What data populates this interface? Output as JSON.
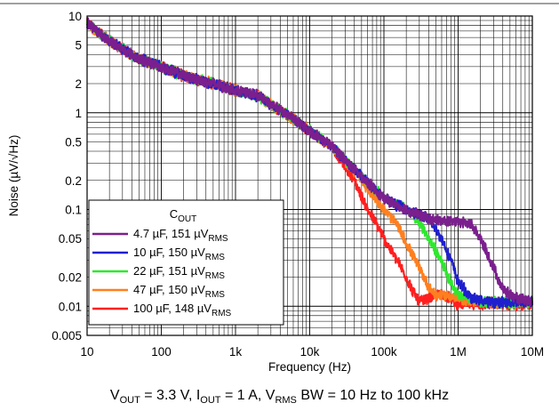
{
  "chart_data": {
    "type": "line",
    "xlabel": "Frequency (Hz)",
    "ylabel": "Noise (µV/√Hz)",
    "xscale": "log",
    "yscale": "log",
    "xlim": [
      10,
      10000000
    ],
    "ylim": [
      0.005,
      10
    ],
    "grid": true,
    "x_tick_labels": [
      "10",
      "100",
      "1k",
      "10k",
      "100k",
      "1M",
      "10M"
    ],
    "x_tick_values": [
      10,
      100,
      1000,
      10000,
      100000,
      1000000,
      10000000
    ],
    "y_tick_labels": [
      "10",
      "5",
      "2",
      "1",
      "0.5",
      "0.2",
      "0.1",
      "0.05",
      "0.02",
      "0.01",
      "0.005"
    ],
    "y_tick_values": [
      10,
      5,
      2,
      1,
      0.5,
      0.2,
      0.1,
      0.05,
      0.02,
      0.01,
      0.005
    ],
    "legend": {
      "title_main": "C",
      "title_sub": "OUT",
      "placement": "bottom-left"
    },
    "caption_parts": [
      {
        "t": "V",
        "sub": false
      },
      {
        "t": "OUT",
        "sub": true
      },
      {
        "t": " = 3.3 V, I",
        "sub": false
      },
      {
        "t": "OUT",
        "sub": true
      },
      {
        "t": " = 1 A, V",
        "sub": false
      },
      {
        "t": "RMS",
        "sub": true
      },
      {
        "t": " BW = 10 Hz to 100 kHz",
        "sub": false
      }
    ],
    "series": [
      {
        "name_main": "4.7 µF, 151 µV",
        "name_sub": "RMS",
        "color": "#7B1F8E",
        "points": [
          [
            10,
            8.5
          ],
          [
            20,
            5.5
          ],
          [
            50,
            3.6
          ],
          [
            100,
            3.0
          ],
          [
            200,
            2.4
          ],
          [
            500,
            2.0
          ],
          [
            1000,
            1.7
          ],
          [
            2000,
            1.5
          ],
          [
            5000,
            0.95
          ],
          [
            10000,
            0.65
          ],
          [
            20000,
            0.45
          ],
          [
            50000,
            0.22
          ],
          [
            100000,
            0.13
          ],
          [
            200000,
            0.1
          ],
          [
            400000,
            0.08
          ],
          [
            700000,
            0.075
          ],
          [
            1000000,
            0.075
          ],
          [
            1500000,
            0.07
          ],
          [
            2000000,
            0.05
          ],
          [
            3000000,
            0.025
          ],
          [
            4000000,
            0.015
          ],
          [
            6000000,
            0.012
          ],
          [
            10000000,
            0.011
          ]
        ]
      },
      {
        "name_main": "10 µF, 150 µV",
        "name_sub": "RMS",
        "color": "#1F1FCF",
        "points": [
          [
            10,
            8.5
          ],
          [
            20,
            5.5
          ],
          [
            50,
            3.6
          ],
          [
            100,
            3.0
          ],
          [
            200,
            2.4
          ],
          [
            500,
            2.0
          ],
          [
            1000,
            1.7
          ],
          [
            2000,
            1.5
          ],
          [
            5000,
            0.95
          ],
          [
            10000,
            0.65
          ],
          [
            20000,
            0.45
          ],
          [
            50000,
            0.22
          ],
          [
            100000,
            0.13
          ],
          [
            200000,
            0.1
          ],
          [
            400000,
            0.08
          ],
          [
            600000,
            0.05
          ],
          [
            800000,
            0.03
          ],
          [
            1000000,
            0.018
          ],
          [
            1500000,
            0.012
          ],
          [
            3000000,
            0.011
          ],
          [
            10000000,
            0.011
          ]
        ]
      },
      {
        "name_main": "22 µF, 151 µV",
        "name_sub": "RMS",
        "color": "#2EE82E",
        "points": [
          [
            10,
            8.5
          ],
          [
            20,
            5.5
          ],
          [
            50,
            3.6
          ],
          [
            100,
            3.0
          ],
          [
            200,
            2.4
          ],
          [
            500,
            2.0
          ],
          [
            1000,
            1.7
          ],
          [
            2000,
            1.5
          ],
          [
            5000,
            0.95
          ],
          [
            10000,
            0.65
          ],
          [
            20000,
            0.45
          ],
          [
            50000,
            0.22
          ],
          [
            100000,
            0.13
          ],
          [
            200000,
            0.1
          ],
          [
            300000,
            0.075
          ],
          [
            400000,
            0.05
          ],
          [
            600000,
            0.03
          ],
          [
            800000,
            0.017
          ],
          [
            1000000,
            0.013
          ],
          [
            2000000,
            0.011
          ],
          [
            10000000,
            0.011
          ]
        ]
      },
      {
        "name_main": "47 µF, 150 µV",
        "name_sub": "RMS",
        "color": "#FF7F1F",
        "points": [
          [
            10,
            8.5
          ],
          [
            20,
            5.5
          ],
          [
            50,
            3.6
          ],
          [
            100,
            3.0
          ],
          [
            200,
            2.4
          ],
          [
            500,
            2.0
          ],
          [
            1000,
            1.7
          ],
          [
            2000,
            1.5
          ],
          [
            5000,
            0.95
          ],
          [
            10000,
            0.65
          ],
          [
            20000,
            0.45
          ],
          [
            50000,
            0.2
          ],
          [
            100000,
            0.1
          ],
          [
            150000,
            0.07
          ],
          [
            200000,
            0.045
          ],
          [
            300000,
            0.025
          ],
          [
            400000,
            0.016
          ],
          [
            500000,
            0.013
          ],
          [
            700000,
            0.013
          ],
          [
            1000000,
            0.012
          ],
          [
            2000000,
            0.011
          ],
          [
            10000000,
            0.011
          ]
        ]
      },
      {
        "name_main": "100 µF, 148 µV",
        "name_sub": "RMS",
        "color": "#FF1F1F",
        "points": [
          [
            10,
            8.5
          ],
          [
            20,
            5.5
          ],
          [
            50,
            3.6
          ],
          [
            100,
            3.0
          ],
          [
            200,
            2.4
          ],
          [
            500,
            2.0
          ],
          [
            1000,
            1.7
          ],
          [
            2000,
            1.5
          ],
          [
            5000,
            0.95
          ],
          [
            10000,
            0.65
          ],
          [
            20000,
            0.45
          ],
          [
            40000,
            0.2
          ],
          [
            60000,
            0.1
          ],
          [
            80000,
            0.07
          ],
          [
            100000,
            0.05
          ],
          [
            150000,
            0.03
          ],
          [
            200000,
            0.02
          ],
          [
            250000,
            0.014
          ],
          [
            300000,
            0.011
          ],
          [
            400000,
            0.012
          ],
          [
            600000,
            0.0135
          ],
          [
            800000,
            0.012
          ],
          [
            1000000,
            0.0105
          ],
          [
            2000000,
            0.0105
          ],
          [
            10000000,
            0.0105
          ]
        ]
      }
    ]
  }
}
